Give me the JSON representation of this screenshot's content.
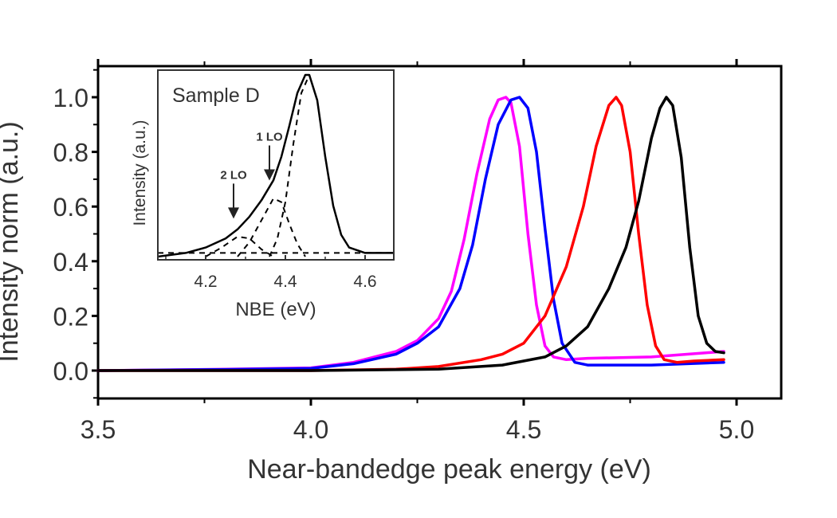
{
  "chart_data": {
    "type": "line",
    "title": "",
    "xlabel": "Near-bandedge peak energy (eV)",
    "ylabel": "Intensity norm (a.u.)",
    "xlim": [
      3.5,
      5.1
    ],
    "ylim": [
      -0.1,
      1.1
    ],
    "xticks": [
      3.5,
      4.0,
      4.5,
      5.0
    ],
    "xtick_labels": [
      "3.5",
      "4.0",
      "4.5",
      "5.0"
    ],
    "yticks": [
      0.0,
      0.2,
      0.4,
      0.6,
      0.8,
      1.0
    ],
    "ytick_labels": [
      "0.0",
      "0.2",
      "0.4",
      "0.6",
      "0.8",
      "1.0"
    ],
    "grid": false,
    "legend": null,
    "series": [
      {
        "name": "magenta",
        "color": "#ff00ff",
        "x": [
          3.5,
          3.8,
          4.0,
          4.1,
          4.2,
          4.25,
          4.3,
          4.33,
          4.36,
          4.39,
          4.42,
          4.44,
          4.458,
          4.47,
          4.49,
          4.51,
          4.53,
          4.55,
          4.57,
          4.6,
          4.65,
          4.8,
          4.97
        ],
        "y": [
          0.0,
          0.005,
          0.01,
          0.03,
          0.07,
          0.11,
          0.19,
          0.29,
          0.48,
          0.72,
          0.92,
          0.99,
          1.0,
          0.98,
          0.82,
          0.5,
          0.24,
          0.09,
          0.05,
          0.04,
          0.045,
          0.05,
          0.07
        ]
      },
      {
        "name": "blue",
        "color": "#0000ff",
        "x": [
          3.5,
          3.8,
          4.0,
          4.1,
          4.2,
          4.25,
          4.3,
          4.35,
          4.38,
          4.41,
          4.44,
          4.47,
          4.49,
          4.51,
          4.53,
          4.55,
          4.57,
          4.59,
          4.62,
          4.65,
          4.8,
          4.97
        ],
        "y": [
          0.0,
          0.004,
          0.008,
          0.025,
          0.06,
          0.1,
          0.16,
          0.3,
          0.46,
          0.7,
          0.9,
          0.99,
          1.0,
          0.96,
          0.8,
          0.52,
          0.26,
          0.1,
          0.03,
          0.02,
          0.02,
          0.03
        ]
      },
      {
        "name": "red",
        "color": "#ff0000",
        "x": [
          3.5,
          4.0,
          4.2,
          4.3,
          4.4,
          4.45,
          4.5,
          4.55,
          4.6,
          4.64,
          4.67,
          4.7,
          4.717,
          4.73,
          4.75,
          4.77,
          4.79,
          4.81,
          4.83,
          4.86,
          4.9,
          4.97
        ],
        "y": [
          0.0,
          0.0,
          0.005,
          0.015,
          0.04,
          0.06,
          0.1,
          0.2,
          0.38,
          0.6,
          0.82,
          0.97,
          1.0,
          0.97,
          0.8,
          0.5,
          0.24,
          0.09,
          0.04,
          0.03,
          0.035,
          0.04
        ]
      },
      {
        "name": "black",
        "color": "#000000",
        "x": [
          3.5,
          4.0,
          4.3,
          4.45,
          4.55,
          4.6,
          4.65,
          4.7,
          4.74,
          4.77,
          4.8,
          4.82,
          4.835,
          4.85,
          4.87,
          4.89,
          4.91,
          4.93,
          4.95,
          4.97
        ],
        "y": [
          0.0,
          0.0,
          0.005,
          0.02,
          0.05,
          0.09,
          0.16,
          0.3,
          0.45,
          0.62,
          0.85,
          0.96,
          1.0,
          0.97,
          0.78,
          0.45,
          0.2,
          0.1,
          0.07,
          0.065
        ]
      }
    ],
    "inset": {
      "title": "Sample D",
      "xlabel": "NBE (eV)",
      "ylabel": "Intensity (a.u.)",
      "xlim": [
        4.08,
        4.67
      ],
      "ylim": [
        0,
        1.05
      ],
      "xticks": [
        4.2,
        4.4,
        4.6
      ],
      "xtick_labels": [
        "4.2",
        "4.4",
        "4.6"
      ],
      "annotations": [
        {
          "text": "1 LO",
          "x": 4.36,
          "y": 0.41
        },
        {
          "text": "2 LO",
          "x": 4.27,
          "y": 0.2
        }
      ],
      "series": [
        {
          "name": "measured",
          "style": "solid",
          "color": "#000000",
          "x": [
            4.08,
            4.15,
            4.2,
            4.25,
            4.28,
            4.31,
            4.34,
            4.37,
            4.39,
            4.41,
            4.43,
            4.45,
            4.46,
            4.48,
            4.5,
            4.52,
            4.54,
            4.56,
            4.6,
            4.67
          ],
          "y": [
            0.0,
            0.02,
            0.05,
            0.1,
            0.15,
            0.22,
            0.31,
            0.42,
            0.55,
            0.72,
            0.9,
            1.0,
            1.0,
            0.86,
            0.55,
            0.28,
            0.12,
            0.05,
            0.02,
            0.02
          ]
        },
        {
          "name": "fit-0LO",
          "style": "dashed",
          "color": "#000000",
          "x": [
            4.36,
            4.38,
            4.4,
            4.42,
            4.44,
            4.46,
            4.48,
            4.5,
            4.52,
            4.54,
            4.56,
            4.6,
            4.67
          ],
          "y": [
            0.0,
            0.1,
            0.3,
            0.62,
            0.9,
            1.0,
            0.86,
            0.55,
            0.28,
            0.12,
            0.05,
            0.02,
            0.02
          ]
        },
        {
          "name": "fit-1LO",
          "style": "dashed",
          "color": "#000000",
          "x": [
            4.28,
            4.31,
            4.34,
            4.37,
            4.39,
            4.41,
            4.43,
            4.45
          ],
          "y": [
            0.0,
            0.08,
            0.2,
            0.32,
            0.3,
            0.18,
            0.07,
            0.0
          ]
        },
        {
          "name": "fit-2LO",
          "style": "dashed",
          "color": "#000000",
          "x": [
            4.2,
            4.24,
            4.28,
            4.31,
            4.34,
            4.37
          ],
          "y": [
            0.0,
            0.05,
            0.11,
            0.1,
            0.04,
            0.0
          ]
        },
        {
          "name": "baseline",
          "style": "dashed",
          "color": "#000000",
          "x": [
            4.08,
            4.67
          ],
          "y": [
            0.02,
            0.02
          ]
        }
      ]
    }
  }
}
